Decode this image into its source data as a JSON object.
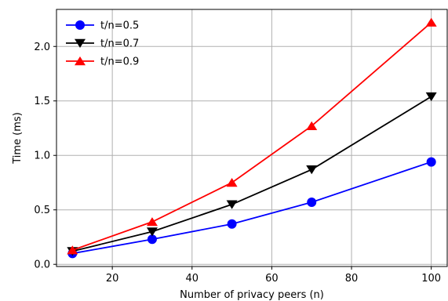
{
  "chart_data": {
    "type": "line",
    "title": "",
    "xlabel": "Number of privacy peers (n)",
    "ylabel": "Time (ms)",
    "x": [
      10,
      30,
      50,
      70,
      100
    ],
    "xlim": [
      6,
      104
    ],
    "ylim": [
      -0.02,
      2.34
    ],
    "xticks": [
      20,
      40,
      60,
      80,
      100
    ],
    "yticks": [
      0.0,
      0.5,
      1.0,
      1.5,
      2.0
    ],
    "xtick_labels": [
      "20",
      "40",
      "60",
      "80",
      "100"
    ],
    "ytick_labels": [
      "0.0",
      "0.5",
      "1.0",
      "1.5",
      "2.0"
    ],
    "grid": true,
    "legend_position": "top-left",
    "series": [
      {
        "name": "t/n=0.5",
        "values": [
          0.1,
          0.23,
          0.37,
          0.57,
          0.94
        ],
        "color": "#0000ff",
        "marker": "circle"
      },
      {
        "name": "t/n=0.7",
        "values": [
          0.12,
          0.3,
          0.55,
          0.87,
          1.54
        ],
        "color": "#000000",
        "marker": "triangle-down"
      },
      {
        "name": "t/n=0.9",
        "values": [
          0.13,
          0.39,
          0.75,
          1.27,
          2.22
        ],
        "color": "#ff0000",
        "marker": "triangle-up"
      }
    ]
  }
}
